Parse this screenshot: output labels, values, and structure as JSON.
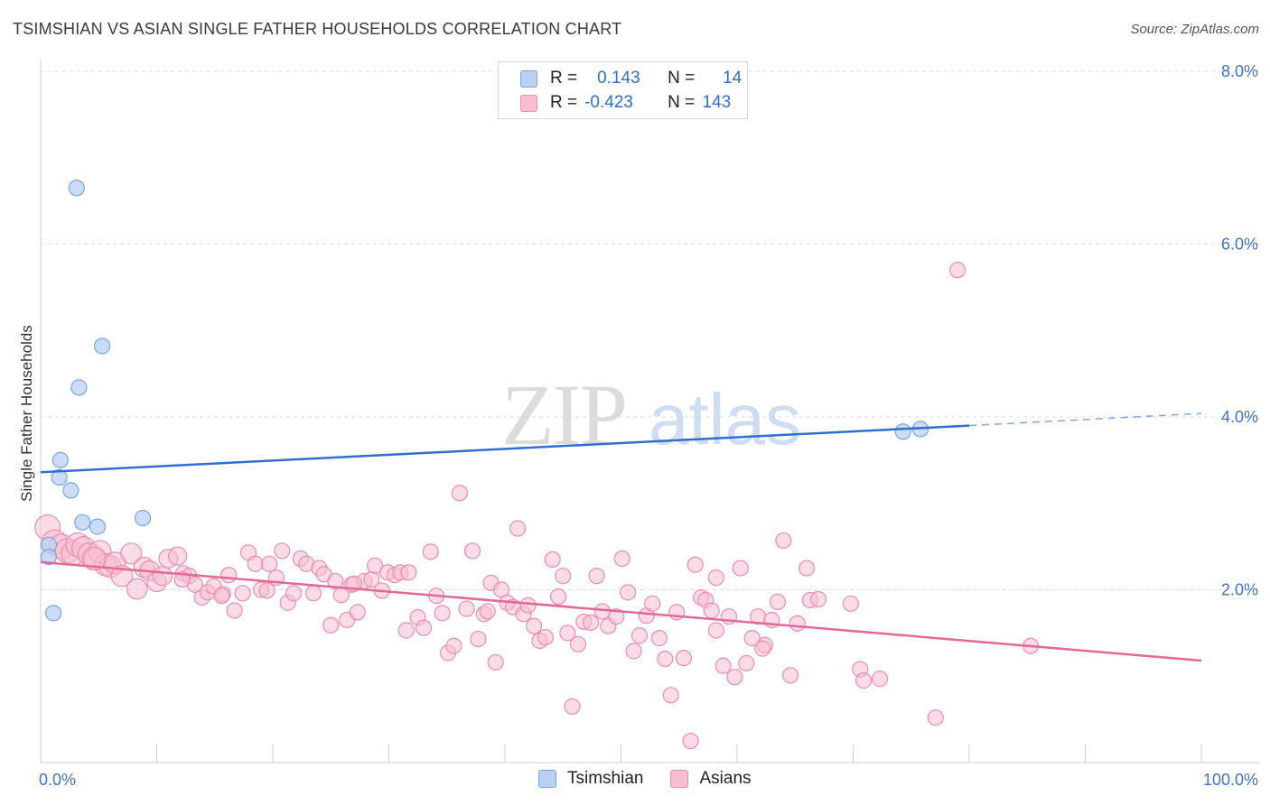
{
  "title": "TSIMSHIAN VS ASIAN SINGLE FATHER HOUSEHOLDS CORRELATION CHART",
  "source": "Source: ZipAtlas.com",
  "watermark": {
    "zip": "ZIP",
    "atlas": "atlas"
  },
  "legend_top": {
    "r_label": "R =",
    "n_label": "N =",
    "rows": [
      {
        "series": "Tsimshian",
        "r": "0.143",
        "n": "14"
      },
      {
        "series": "Asians",
        "r": "-0.423",
        "n": "143"
      }
    ]
  },
  "legend_bottom": [
    {
      "label": "Tsimshian"
    },
    {
      "label": "Asians"
    }
  ],
  "colors": {
    "tsimshian_fill": "#b9d2f3",
    "tsimshian_stroke": "#7aa5e0",
    "tsimshian_line": "#2f6fd0",
    "asians_fill": "#f7bdd0",
    "asians_stroke": "#ec8eae",
    "asians_line": "#e4679a",
    "tick_label": "#3f74d0",
    "grid": "#dcdcdc"
  },
  "chart_data": {
    "type": "scatter",
    "title": "TSIMSHIAN VS ASIAN SINGLE FATHER HOUSEHOLDS CORRELATION CHART",
    "xlabel": "",
    "ylabel": "Single Father Households",
    "xlim": [
      0,
      100
    ],
    "ylim": [
      0,
      8
    ],
    "x_tick_labels": [
      {
        "value": 0,
        "label": "0.0%"
      },
      {
        "value": 100,
        "label": "100.0%"
      }
    ],
    "y_tick_labels": [
      {
        "value": 2,
        "label": "2.0%"
      },
      {
        "value": 4,
        "label": "4.0%"
      },
      {
        "value": 6,
        "label": "6.0%"
      },
      {
        "value": 8,
        "label": "8.0%"
      }
    ],
    "series": [
      {
        "name": "Tsimshian",
        "points": [
          [
            3.1,
            6.65
          ],
          [
            5.3,
            4.82
          ],
          [
            3.3,
            4.34
          ],
          [
            1.7,
            3.5
          ],
          [
            1.6,
            3.3
          ],
          [
            2.6,
            3.15
          ],
          [
            3.6,
            2.78
          ],
          [
            4.9,
            2.73
          ],
          [
            8.8,
            2.83
          ],
          [
            0.7,
            2.52
          ],
          [
            0.7,
            2.38
          ],
          [
            1.1,
            1.73
          ],
          [
            74.3,
            3.83
          ],
          [
            75.8,
            3.86
          ]
        ],
        "trend": {
          "x0": 0,
          "y0": 3.36,
          "x1": 80,
          "y1": 3.9,
          "dash_to_x": 100,
          "dash_to_y": 4.04
        }
      },
      {
        "name": "Asians",
        "points": [
          [
            0.6,
            2.72
          ],
          [
            1.2,
            2.55
          ],
          [
            1.8,
            2.5
          ],
          [
            2.3,
            2.45
          ],
          [
            2.8,
            2.42
          ],
          [
            3.2,
            2.52
          ],
          [
            3.7,
            2.48
          ],
          [
            4.2,
            2.41
          ],
          [
            4.7,
            2.36
          ],
          [
            5.1,
            2.44
          ],
          [
            5.6,
            2.29
          ],
          [
            6.0,
            2.27
          ],
          [
            6.4,
            2.31
          ],
          [
            7.0,
            2.16
          ],
          [
            7.8,
            2.42
          ],
          [
            8.3,
            2.01
          ],
          [
            8.9,
            2.26
          ],
          [
            9.4,
            2.22
          ],
          [
            10.0,
            2.09
          ],
          [
            10.5,
            2.16
          ],
          [
            11.0,
            2.36
          ],
          [
            11.8,
            2.39
          ],
          [
            12.3,
            2.19
          ],
          [
            12.8,
            2.16
          ],
          [
            13.3,
            2.06
          ],
          [
            13.9,
            1.91
          ],
          [
            14.4,
            1.97
          ],
          [
            14.9,
            2.04
          ],
          [
            15.7,
            1.95
          ],
          [
            16.2,
            2.17
          ],
          [
            16.7,
            1.76
          ],
          [
            17.4,
            1.96
          ],
          [
            17.9,
            2.43
          ],
          [
            18.5,
            2.3
          ],
          [
            19.0,
            2.0
          ],
          [
            19.5,
            1.99
          ],
          [
            19.7,
            2.3
          ],
          [
            20.3,
            2.14
          ],
          [
            20.8,
            2.45
          ],
          [
            21.3,
            1.85
          ],
          [
            21.8,
            1.96
          ],
          [
            22.4,
            2.36
          ],
          [
            22.9,
            2.3
          ],
          [
            23.5,
            1.96
          ],
          [
            24.0,
            2.25
          ],
          [
            24.4,
            2.18
          ],
          [
            25.0,
            1.59
          ],
          [
            25.4,
            2.1
          ],
          [
            25.9,
            1.94
          ],
          [
            26.4,
            1.65
          ],
          [
            26.8,
            2.06
          ],
          [
            27.3,
            1.74
          ],
          [
            27.9,
            2.1
          ],
          [
            28.5,
            2.12
          ],
          [
            28.8,
            2.28
          ],
          [
            29.4,
            1.99
          ],
          [
            29.9,
            2.2
          ],
          [
            30.5,
            2.17
          ],
          [
            31.0,
            2.2
          ],
          [
            31.5,
            1.53
          ],
          [
            31.7,
            2.2
          ],
          [
            32.5,
            1.68
          ],
          [
            33.0,
            1.56
          ],
          [
            33.6,
            2.44
          ],
          [
            34.1,
            1.93
          ],
          [
            34.6,
            1.73
          ],
          [
            35.1,
            1.27
          ],
          [
            35.6,
            1.35
          ],
          [
            36.1,
            3.12
          ],
          [
            36.7,
            1.78
          ],
          [
            37.2,
            2.45
          ],
          [
            37.7,
            1.43
          ],
          [
            38.2,
            1.72
          ],
          [
            38.8,
            2.08
          ],
          [
            39.2,
            1.16
          ],
          [
            39.7,
            2.0
          ],
          [
            40.2,
            1.85
          ],
          [
            40.7,
            1.8
          ],
          [
            41.1,
            2.71
          ],
          [
            41.6,
            1.72
          ],
          [
            42.0,
            1.82
          ],
          [
            42.5,
            1.58
          ],
          [
            43.0,
            1.41
          ],
          [
            43.5,
            1.45
          ],
          [
            44.1,
            2.35
          ],
          [
            44.6,
            1.92
          ],
          [
            45.0,
            2.16
          ],
          [
            45.4,
            1.5
          ],
          [
            45.8,
            0.65
          ],
          [
            46.3,
            1.37
          ],
          [
            46.8,
            1.63
          ],
          [
            47.4,
            1.62
          ],
          [
            47.9,
            2.16
          ],
          [
            48.4,
            1.75
          ],
          [
            48.9,
            1.58
          ],
          [
            49.6,
            1.69
          ],
          [
            50.1,
            2.36
          ],
          [
            50.6,
            1.97
          ],
          [
            51.1,
            1.29
          ],
          [
            51.6,
            1.47
          ],
          [
            52.2,
            1.7
          ],
          [
            52.7,
            1.84
          ],
          [
            53.3,
            1.44
          ],
          [
            53.8,
            1.2
          ],
          [
            54.3,
            0.78
          ],
          [
            54.8,
            1.74
          ],
          [
            55.4,
            1.21
          ],
          [
            56.0,
            0.25
          ],
          [
            56.4,
            2.29
          ],
          [
            56.9,
            1.91
          ],
          [
            57.3,
            1.88
          ],
          [
            57.8,
            1.76
          ],
          [
            58.2,
            2.14
          ],
          [
            58.8,
            1.12
          ],
          [
            59.3,
            1.69
          ],
          [
            59.8,
            0.99
          ],
          [
            60.3,
            2.25
          ],
          [
            60.8,
            1.15
          ],
          [
            61.3,
            1.44
          ],
          [
            61.8,
            1.69
          ],
          [
            62.4,
            1.36
          ],
          [
            63.0,
            1.65
          ],
          [
            63.5,
            1.86
          ],
          [
            64.0,
            2.57
          ],
          [
            64.6,
            1.01
          ],
          [
            65.2,
            1.61
          ],
          [
            66.0,
            2.25
          ],
          [
            66.3,
            1.88
          ],
          [
            67.0,
            1.89
          ],
          [
            69.8,
            1.84
          ],
          [
            70.6,
            1.08
          ],
          [
            70.9,
            0.95
          ],
          [
            72.3,
            0.97
          ],
          [
            77.1,
            0.52
          ],
          [
            79.0,
            5.7
          ],
          [
            85.3,
            1.35
          ],
          [
            38.5,
            1.75
          ],
          [
            27.0,
            2.07
          ],
          [
            15.6,
            1.93
          ],
          [
            12.2,
            2.12
          ],
          [
            4.6,
            2.36
          ],
          [
            62.2,
            1.32
          ],
          [
            58.2,
            1.53
          ]
        ],
        "trend": {
          "x0": 0,
          "y0": 2.32,
          "x1": 100,
          "y1": 1.18
        }
      }
    ]
  }
}
